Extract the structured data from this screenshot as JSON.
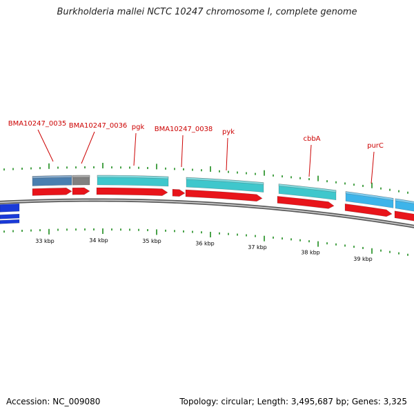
{
  "title": "Burkholderia mallei NCTC 10247 chromosome I, complete genome",
  "footer": {
    "accession": "Accession: NC_009080",
    "summary": "Topology: circular; Length: 3,495,687 bp; Genes: 3,325"
  },
  "colors": {
    "backbone": "#8c8c8c",
    "tick": "#1a8a1a",
    "cds_forward": "#e8141a",
    "gene_cyan": "#3fc7cc",
    "gene_skyblue": "#3db4ea",
    "gene_steel": "#4a7fb0",
    "gene_gray": "#808080",
    "gene_blue": "#1a3ad8",
    "label": "#cc0000"
  },
  "gene_labels": [
    "BMA10247_0035",
    "BMA10247_0036",
    "pgk",
    "BMA10247_0038",
    "pyk",
    "cbbA",
    "purC"
  ],
  "kbp_labels": [
    "33 kbp",
    "34 kbp",
    "35 kbp",
    "36 kbp",
    "37 kbp",
    "38 kbp",
    "39 kbp"
  ]
}
